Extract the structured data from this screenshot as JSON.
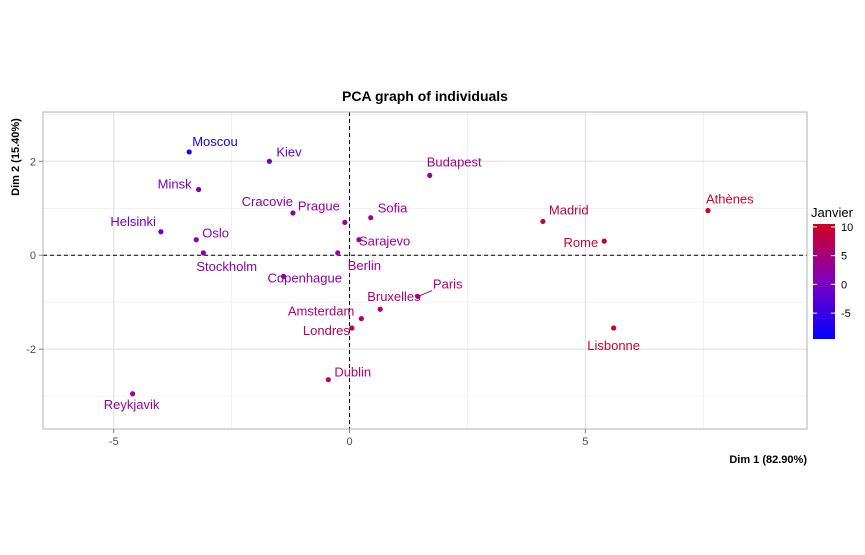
{
  "chart_data": {
    "type": "scatter",
    "title": "PCA graph of individuals",
    "xlabel": "Dim 1 (82.90%)",
    "ylabel": "Dim 2 (15.40%)",
    "xlim": [
      -6.5,
      9.7
    ],
    "ylim": [
      -3.7,
      3.05
    ],
    "x_ticks": [
      -5,
      0,
      5
    ],
    "y_ticks": [
      -2,
      0,
      2
    ],
    "grid": true,
    "legend": {
      "title": "Janvier",
      "placement": "right",
      "ticks": [
        10,
        5,
        0,
        -5
      ],
      "range": [
        -9.5,
        10.5
      ],
      "colors": [
        "#0000ff",
        "#8000c0",
        "#d00020"
      ]
    },
    "points": [
      {
        "label": "Moscou",
        "x": -3.4,
        "y": 2.2,
        "color": "#1a00f0"
      },
      {
        "label": "Kiev",
        "x": -1.7,
        "y": 2.0,
        "color": "#6a00cc"
      },
      {
        "label": "Budapest",
        "x": 1.7,
        "y": 1.7,
        "color": "#a0008a"
      },
      {
        "label": "Minsk",
        "x": -3.2,
        "y": 1.4,
        "color": "#7a00c0"
      },
      {
        "label": "Athènes",
        "x": 7.6,
        "y": 0.95,
        "color": "#d00028"
      },
      {
        "label": "Cracovie",
        "x": -1.2,
        "y": 0.9,
        "color": "#8a00b0"
      },
      {
        "label": "Sofia",
        "x": 0.45,
        "y": 0.8,
        "color": "#a00090"
      },
      {
        "label": "Madrid",
        "x": 4.1,
        "y": 0.72,
        "color": "#c00048"
      },
      {
        "label": "Prague",
        "x": -0.1,
        "y": 0.7,
        "color": "#9a00a0"
      },
      {
        "label": "Helsinki",
        "x": -4.0,
        "y": 0.5,
        "color": "#7000c8"
      },
      {
        "label": "Oslo",
        "x": -3.25,
        "y": 0.33,
        "color": "#8800b8"
      },
      {
        "label": "Sarajevo",
        "x": 0.2,
        "y": 0.33,
        "color": "#a00090"
      },
      {
        "label": "Rome",
        "x": 5.4,
        "y": 0.3,
        "color": "#c80038"
      },
      {
        "label": "Stockholm",
        "x": -3.1,
        "y": 0.05,
        "color": "#8a00b0"
      },
      {
        "label": "Berlin",
        "x": -0.25,
        "y": 0.05,
        "color": "#9a00a0"
      },
      {
        "label": "Copenhague",
        "x": -1.4,
        "y": -0.45,
        "color": "#9000a8"
      },
      {
        "label": "Paris",
        "x": 1.45,
        "y": -0.88,
        "color": "#b00070"
      },
      {
        "label": "Bruxelles",
        "x": 0.65,
        "y": -1.15,
        "color": "#b00070"
      },
      {
        "label": "Amsterdam",
        "x": 0.25,
        "y": -1.35,
        "color": "#b00078"
      },
      {
        "label": "Londres",
        "x": 0.05,
        "y": -1.55,
        "color": "#b80060"
      },
      {
        "label": "Lisbonne",
        "x": 5.6,
        "y": -1.55,
        "color": "#cc0030"
      },
      {
        "label": "Dublin",
        "x": -0.45,
        "y": -2.65,
        "color": "#b80068"
      },
      {
        "label": "Reykjavik",
        "x": -4.6,
        "y": -2.95,
        "color": "#9a00a0"
      }
    ]
  }
}
